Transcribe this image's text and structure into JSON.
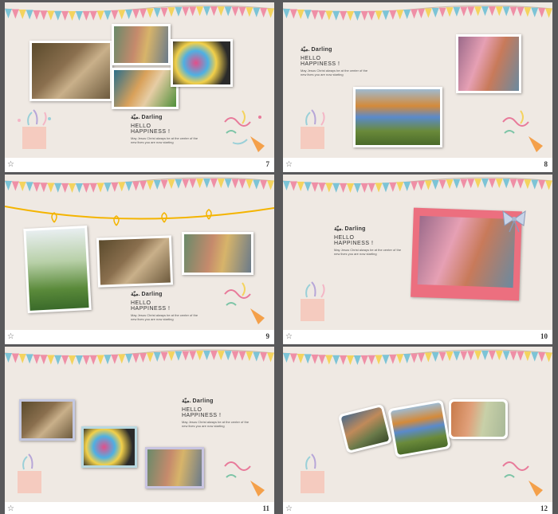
{
  "text_block": {
    "title": "ميّة. Darling",
    "hello": "HELLO",
    "happiness": "HAPPINESS !",
    "body": "May Jesus Christ always be at the center of the new lives you are now starting"
  },
  "footer_icon": "☆",
  "slides": [
    {
      "number": "7"
    },
    {
      "number": "8"
    },
    {
      "number": "9"
    },
    {
      "number": "10"
    },
    {
      "number": "11"
    },
    {
      "number": "12"
    }
  ],
  "colors": {
    "background": "#59595b",
    "slide_bg": "#efe9e3",
    "flag_blue": "#7cc4d6",
    "flag_pink": "#ef8fa6",
    "flag_yellow": "#f4d35e",
    "string_yellow": "#f4b400",
    "frame_pink": "#ec6f7f"
  }
}
